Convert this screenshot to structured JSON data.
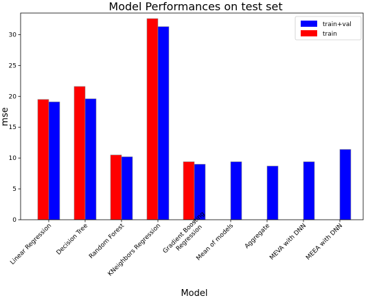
{
  "chart_data": {
    "type": "bar",
    "title": "Model Performances on test set",
    "xlabel": "Model",
    "ylabel": "mse",
    "ylim": [
      0,
      33.5
    ],
    "yticks": [
      0,
      5,
      10,
      15,
      20,
      25,
      30
    ],
    "categories": [
      "Linear Regression",
      "Decision Tree",
      "Random Forest",
      "KNeighbors Regression",
      "Gradient Boosting\nRegression",
      "Mean of models",
      "Aggregate",
      "MEVA with DNN",
      "MEEA with DNN"
    ],
    "series": [
      {
        "name": "train",
        "color": "#ff0000",
        "values": [
          19.5,
          21.6,
          10.5,
          32.6,
          9.4,
          null,
          null,
          null,
          null
        ]
      },
      {
        "name": "train+val",
        "color": "#0000ff",
        "values": [
          19.1,
          19.6,
          10.2,
          31.3,
          9.0,
          9.4,
          8.7,
          9.4,
          11.4
        ]
      }
    ],
    "legend": {
      "placement": "top-right",
      "order": [
        "train+val",
        "train"
      ]
    },
    "grid": false
  }
}
